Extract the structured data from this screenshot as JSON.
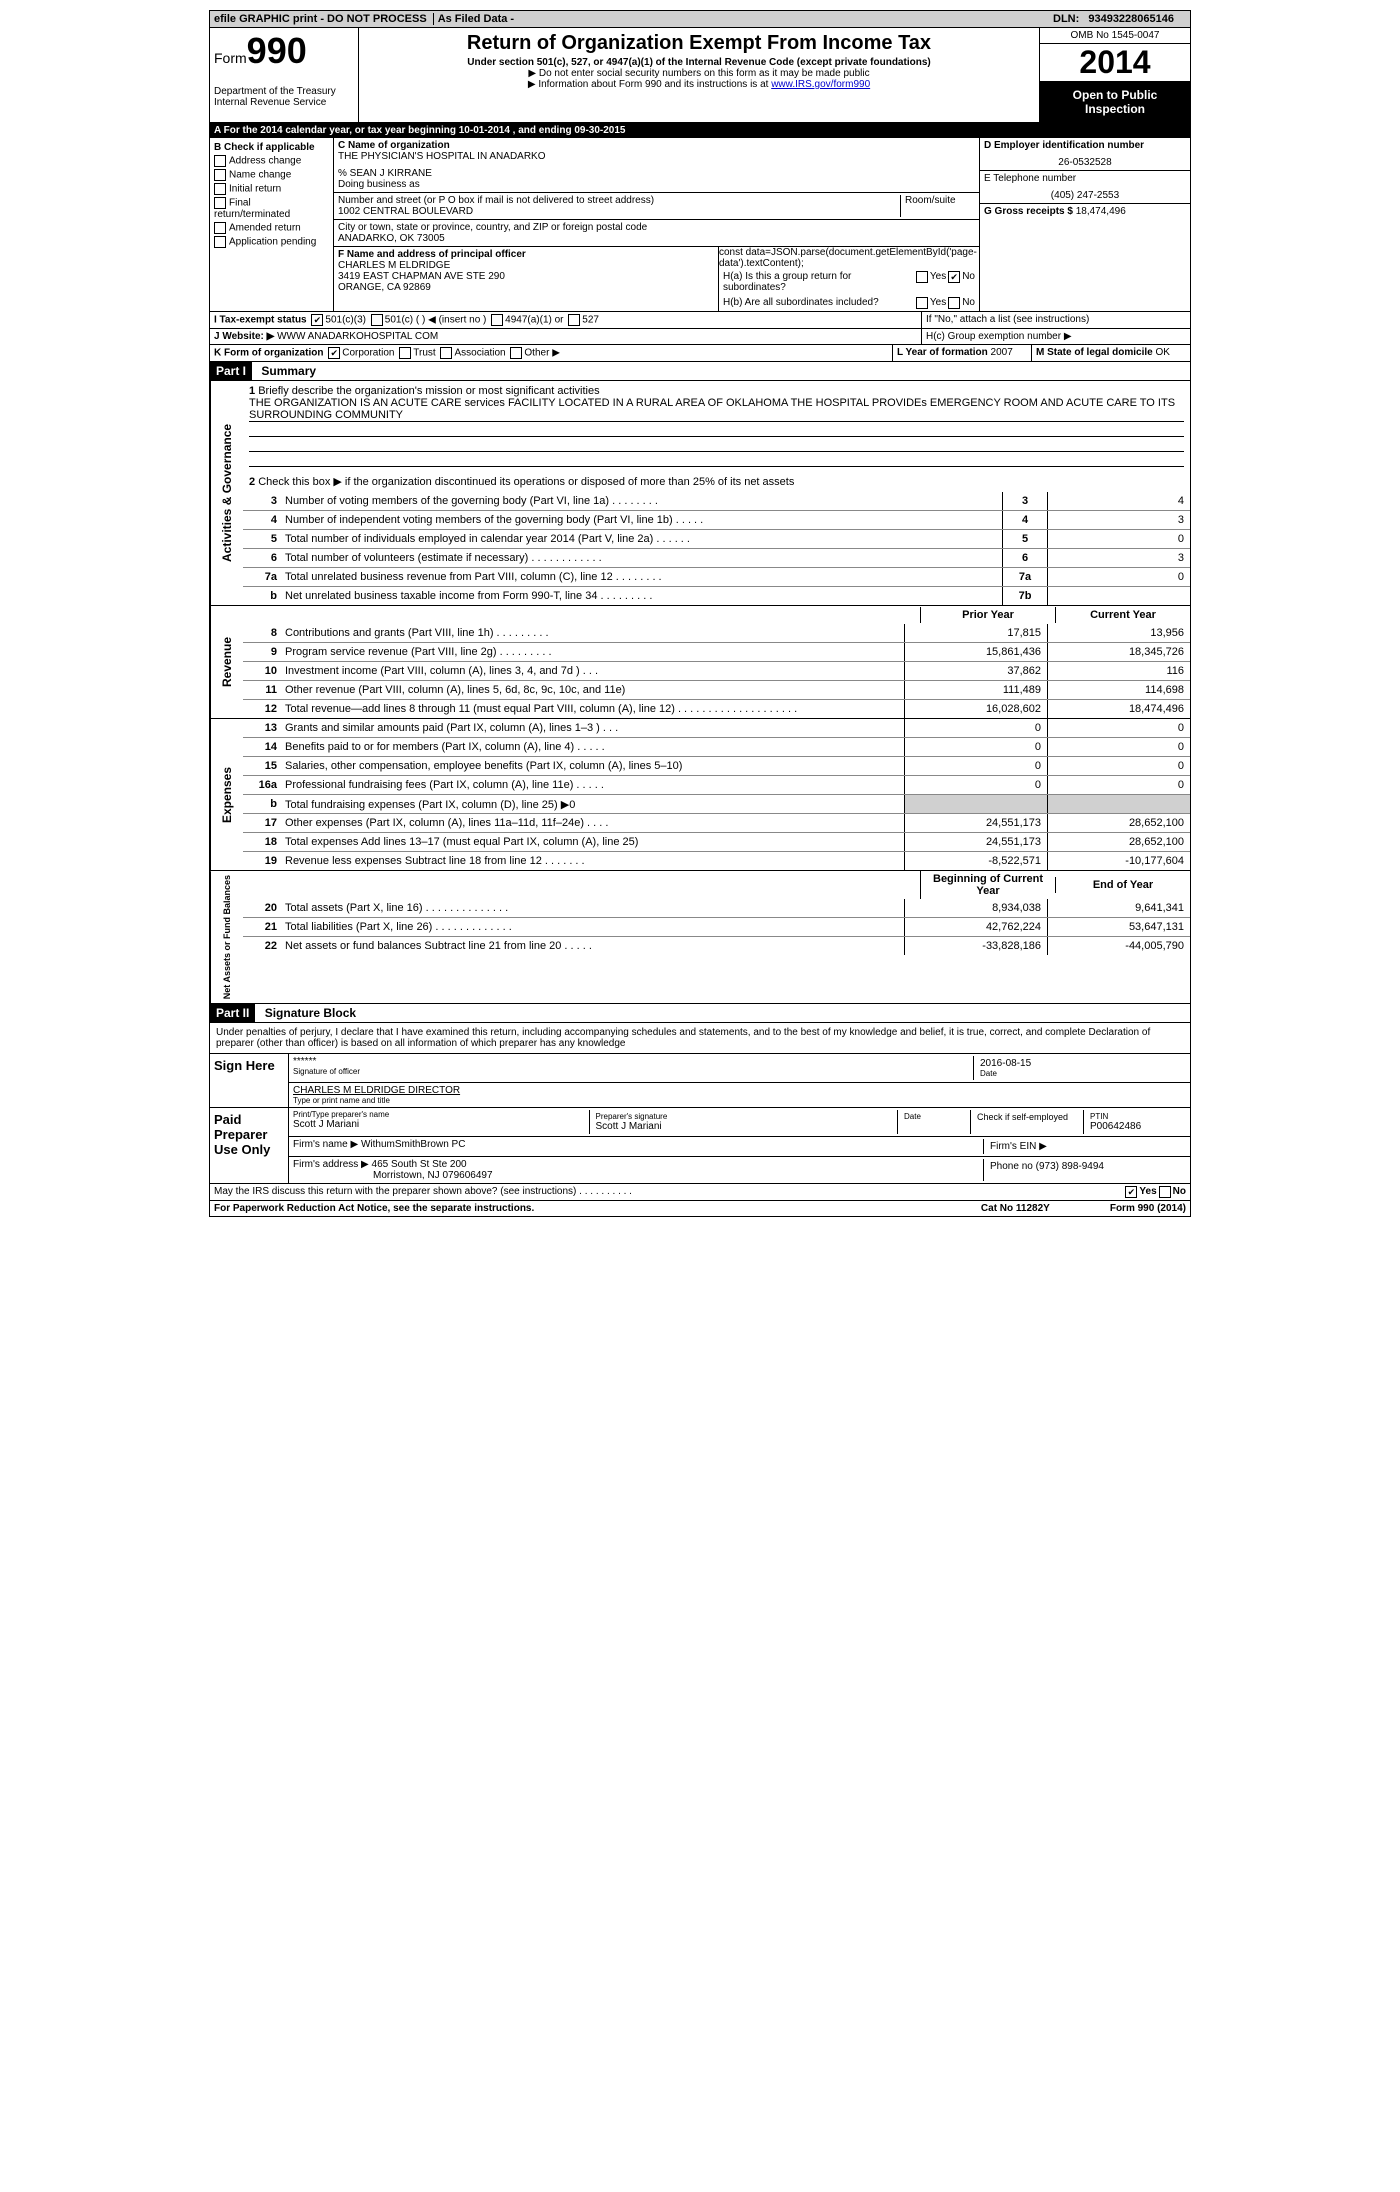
{
  "topbar": {
    "efile": "efile GRAPHIC print - DO NOT PROCESS",
    "asfiled": "As Filed Data -",
    "dln_label": "DLN:",
    "dln": "93493228065146"
  },
  "header": {
    "form_label": "Form",
    "form_number": "990",
    "dept": "Department of the Treasury",
    "irs": "Internal Revenue Service",
    "title": "Return of Organization Exempt From Income Tax",
    "subtitle": "Under section 501(c), 527, or 4947(a)(1) of the Internal Revenue Code (except private foundations)",
    "note1": "▶ Do not enter social security numbers on this form as it may be made public",
    "note2": "▶ Information about Form 990 and its instructions is at ",
    "note2_link": "www.IRS.gov/form990",
    "omb": "OMB No 1545-0047",
    "year": "2014",
    "open": "Open to Public Inspection"
  },
  "row_a": {
    "text_pre": "A  For the 2014 calendar year, or tax year beginning ",
    "begin": "10-01-2014",
    "mid": "   , and ending ",
    "end": "09-30-2015"
  },
  "col_b": {
    "header": "B  Check if applicable",
    "items": [
      "Address change",
      "Name change",
      "Initial return",
      "Final return/terminated",
      "Amended return",
      "Application pending"
    ]
  },
  "col_c": {
    "name_label": "C Name of organization",
    "name": "THE PHYSICIAN'S HOSPITAL IN ANADARKO",
    "care_of": "% SEAN J KIRRANE",
    "dba_label": "Doing business as",
    "addr_label": "Number and street (or P O  box if mail is not delivered to street address)",
    "room_label": "Room/suite",
    "addr": "1002 CENTRAL BOULEVARD",
    "city_label": "City or town, state or province, country, and ZIP or foreign postal code",
    "city": "ANADARKO, OK  73005",
    "officer_label": "F  Name and address of principal officer",
    "officer_name": "CHARLES M ELDRIDGE",
    "officer_addr1": "3419 EAST CHAPMAN AVE STE 290",
    "officer_addr2": "ORANGE, CA  92869"
  },
  "col_d": {
    "ein_label": "D Employer identification number",
    "ein": "26-0532528",
    "phone_label": "E Telephone number",
    "phone": "(405) 247-2553",
    "gross_label": "G Gross receipts $",
    "gross": "18,474,496"
  },
  "h": {
    "ha": "H(a)  Is this a group return for subordinates?",
    "hb": "H(b)  Are all subordinates included?",
    "hb_note": "If \"No,\" attach a list  (see instructions)",
    "hc": "H(c)   Group exemption number ▶",
    "yes": "Yes",
    "no": "No"
  },
  "row_i": {
    "label": "I  Tax-exempt status",
    "opt1": "501(c)(3)",
    "opt2": "501(c) (   ) ◀ (insert no )",
    "opt3": "4947(a)(1) or",
    "opt4": "527"
  },
  "row_j": {
    "label": "J  Website: ▶",
    "value": "WWW ANADARKOHOSPITAL COM"
  },
  "row_k": {
    "label": "K Form of organization",
    "corp": "Corporation",
    "trust": "Trust",
    "assoc": "Association",
    "other": "Other ▶",
    "year_label": "L Year of formation",
    "year": "2007",
    "state_label": "M State of legal domicile",
    "state": "OK"
  },
  "part1": {
    "label": "Part I",
    "title": "Summary",
    "line1_label": "1",
    "line1_text": "Briefly describe the organization's mission or most significant activities",
    "line1_value": "THE ORGANIZATION IS AN ACUTE CARE services FACILITY LOCATED IN A RURAL AREA OF OKLAHOMA  THE HOSPITAL PROVIDEs EMERGENCY ROOM AND ACUTE CARE TO ITS SURROUNDING COMMUNITY",
    "line2": "Check this box ▶     if the organization discontinued its operations or disposed of more than 25% of its net assets",
    "lines_gov": [
      {
        "n": "3",
        "t": "Number of voting members of the governing body (Part VI, line 1a)  .   .   .   .   .   .   .   .",
        "box": "3",
        "v": "4"
      },
      {
        "n": "4",
        "t": "Number of independent voting members of the governing body (Part VI, line 1b)  .   .   .   .   .",
        "box": "4",
        "v": "3"
      },
      {
        "n": "5",
        "t": "Total number of individuals employed in calendar year 2014 (Part V, line 2a)  .   .   .   .   .   .",
        "box": "5",
        "v": "0"
      },
      {
        "n": "6",
        "t": "Total number of volunteers (estimate if necessary)  .   .   .   .   .   .   .   .   .   .   .   .",
        "box": "6",
        "v": "3"
      },
      {
        "n": "7a",
        "t": "Total unrelated business revenue from Part VIII, column (C), line 12  .   .   .   .   .   .   .   .",
        "box": "7a",
        "v": "0"
      },
      {
        "n": "b",
        "t": "Net unrelated business taxable income from Form 990-T, line 34  .   .   .   .   .   .   .   .   .",
        "box": "7b",
        "v": ""
      }
    ],
    "prior_year": "Prior Year",
    "current_year": "Current Year",
    "lines_rev": [
      {
        "n": "8",
        "t": "Contributions and grants (Part VIII, line 1h)   .   .   .   .   .   .   .   .   .",
        "py": "17,815",
        "cy": "13,956"
      },
      {
        "n": "9",
        "t": "Program service revenue (Part VIII, line 2g)   .   .   .   .   .   .   .   .   .",
        "py": "15,861,436",
        "cy": "18,345,726"
      },
      {
        "n": "10",
        "t": "Investment income (Part VIII, column (A), lines 3, 4, and 7d )   .   .   .",
        "py": "37,862",
        "cy": "116"
      },
      {
        "n": "11",
        "t": "Other revenue (Part VIII, column (A), lines 5, 6d, 8c, 9c, 10c, and 11e)",
        "py": "111,489",
        "cy": "114,698"
      },
      {
        "n": "12",
        "t": "Total revenue—add lines 8 through 11 (must equal Part VIII, column (A), line 12)  .   .   .   .   .   .   .   .   .   .   .   .   .   .   .   .   .   .   .   .",
        "py": "16,028,602",
        "cy": "18,474,496"
      }
    ],
    "lines_exp": [
      {
        "n": "13",
        "t": "Grants and similar amounts paid (Part IX, column (A), lines 1–3 )   .   .   .",
        "py": "0",
        "cy": "0"
      },
      {
        "n": "14",
        "t": "Benefits paid to or for members (Part IX, column (A), line 4)   .   .   .   .   .",
        "py": "0",
        "cy": "0"
      },
      {
        "n": "15",
        "t": "Salaries, other compensation, employee benefits (Part IX, column (A), lines 5–10)",
        "py": "0",
        "cy": "0"
      },
      {
        "n": "16a",
        "t": "Professional fundraising fees (Part IX, column (A), line 11e)   .   .   .   .   .",
        "py": "0",
        "cy": "0"
      },
      {
        "n": "b",
        "t": "Total fundraising expenses (Part IX, column (D), line 25) ▶0",
        "py": "",
        "cy": "",
        "gray": true
      },
      {
        "n": "17",
        "t": "Other expenses (Part IX, column (A), lines 11a–11d, 11f–24e)   .   .   .   .",
        "py": "24,551,173",
        "cy": "28,652,100"
      },
      {
        "n": "18",
        "t": "Total expenses  Add lines 13–17 (must equal Part IX, column (A), line 25)",
        "py": "24,551,173",
        "cy": "28,652,100"
      },
      {
        "n": "19",
        "t": "Revenue less expenses  Subtract line 18 from line 12  .   .   .   .   .   .   .",
        "py": "-8,522,571",
        "cy": "-10,177,604"
      }
    ],
    "boy": "Beginning of Current Year",
    "eoy": "End of Year",
    "lines_net": [
      {
        "n": "20",
        "t": "Total assets (Part X, line 16)  .   .   .   .   .   .   .   .   .   .   .   .   .   .",
        "py": "8,934,038",
        "cy": "9,641,341"
      },
      {
        "n": "21",
        "t": "Total liabilities (Part X, line 26)  .   .   .   .   .   .   .   .   .   .   .   .   .",
        "py": "42,762,224",
        "cy": "53,647,131"
      },
      {
        "n": "22",
        "t": "Net assets or fund balances  Subtract line 21 from line 20  .   .   .   .   .",
        "py": "-33,828,186",
        "cy": "-44,005,790"
      }
    ],
    "side_gov": "Activities & Governance",
    "side_rev": "Revenue",
    "side_exp": "Expenses",
    "side_net": "Net Assets or Fund Balances"
  },
  "part2": {
    "label": "Part II",
    "title": "Signature Block",
    "perjury": "Under penalties of perjury, I declare that I have examined this return, including accompanying schedules and statements, and to the best of my knowledge and belief, it is true, correct, and complete  Declaration of preparer (other than officer) is based on all information of which preparer has any knowledge",
    "sign_here": "Sign Here",
    "sig_stars": "******",
    "sig_date": "2016-08-15",
    "sig_officer_label": "Signature of officer",
    "date_label": "Date",
    "sig_name": "CHARLES M ELDRIDGE DIRECTOR",
    "sig_name_label": "Type or print name and title",
    "paid": "Paid Preparer Use Only",
    "prep_name_label": "Print/Type preparer's name",
    "prep_name": "Scott J Mariani",
    "prep_sig_label": "Preparer's signature",
    "prep_sig": "Scott J Mariani",
    "prep_date_label": "Date",
    "self_emp": "Check       if self-employed",
    "ptin_label": "PTIN",
    "ptin": "P00642486",
    "firm_name_label": "Firm's name    ▶",
    "firm_name": "WithumSmithBrown PC",
    "firm_ein_label": "Firm's EIN ▶",
    "firm_addr_label": "Firm's address ▶",
    "firm_addr1": "465 South St Ste 200",
    "firm_addr2": "Morristown, NJ  079606497",
    "firm_phone_label": "Phone no",
    "firm_phone": "(973) 898-9494",
    "discuss": "May the IRS discuss this return with the preparer shown above? (see instructions)   .   .   .   .   .   .   .   .   .   .",
    "discuss_yes": "Yes",
    "discuss_no": "No"
  },
  "footer": {
    "paperwork": "For Paperwork Reduction Act Notice, see the separate instructions.",
    "catno": "Cat No 11282Y",
    "form": "Form 990 (2014)"
  }
}
